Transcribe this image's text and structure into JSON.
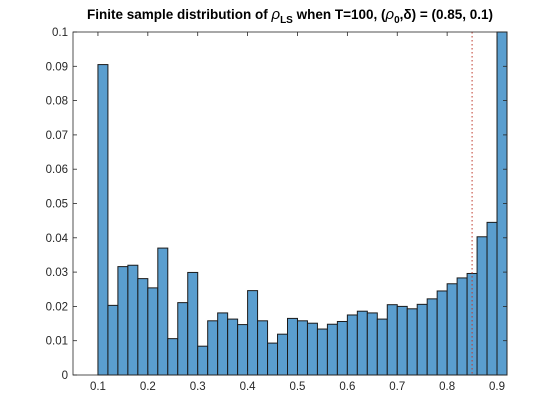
{
  "title": {
    "prefix": "Finite sample distribution of ",
    "rho": "ρ",
    "rho_sub": "LS",
    "middle": " when T=100, (",
    "rho0": "ρ",
    "rho0_sub": "0",
    "comma_delta": ",δ) = (0.85, 0.1)"
  },
  "chart_data": {
    "type": "bar",
    "title": "Finite sample distribution of ρ_LS when T=100, (ρ_0,δ) = (0.85, 0.1)",
    "xlabel": "",
    "ylabel": "",
    "xlim": [
      0.05,
      0.92
    ],
    "ylim": [
      0,
      0.1
    ],
    "bin_width": 0.02,
    "bin_start": 0.1,
    "xticks": [
      "0.1",
      "0.2",
      "0.3",
      "0.4",
      "0.5",
      "0.6",
      "0.7",
      "0.8",
      "0.9"
    ],
    "yticks": [
      "0",
      "0.01",
      "0.02",
      "0.03",
      "0.04",
      "0.05",
      "0.06",
      "0.07",
      "0.08",
      "0.09",
      "0.1"
    ],
    "values": [
      0.0905,
      0.0203,
      0.0316,
      0.032,
      0.0281,
      0.0254,
      0.037,
      0.0106,
      0.0211,
      0.0299,
      0.0084,
      0.0158,
      0.0181,
      0.0163,
      0.0147,
      0.0246,
      0.0158,
      0.0093,
      0.0119,
      0.0165,
      0.0158,
      0.0151,
      0.0134,
      0.0148,
      0.0156,
      0.0175,
      0.0186,
      0.0181,
      0.0163,
      0.0205,
      0.02,
      0.0193,
      0.0206,
      0.0222,
      0.0245,
      0.0266,
      0.0283,
      0.0296,
      0.0403,
      0.0445,
      0.1
    ],
    "reference_line": {
      "x": 0.85,
      "style": "dotted",
      "color": "#c0392b"
    },
    "bar_color": "#5a9ecf",
    "edge_color": "#1a1a1a",
    "grid": false,
    "box": true
  }
}
